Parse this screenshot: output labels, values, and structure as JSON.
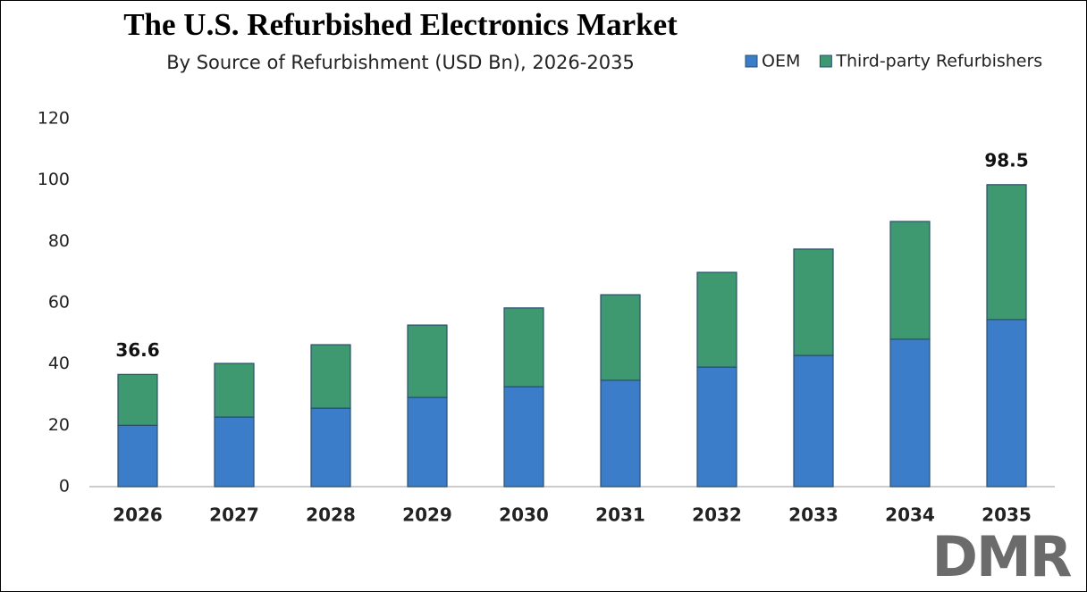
{
  "chart_data": {
    "type": "stacked_bar",
    "title": "The U.S. Refurbished Electronics Market",
    "subtitle": "By Source of Refurbishment (USD Bn), 2026-2035",
    "categories": [
      "2026",
      "2027",
      "2028",
      "2029",
      "2030",
      "2031",
      "2032",
      "2033",
      "2034",
      "2035"
    ],
    "series": [
      {
        "name": "OEM",
        "color": "#3b7dc8",
        "values": [
          20.0,
          22.7,
          25.6,
          29.1,
          32.6,
          34.7,
          39.0,
          42.8,
          48.1,
          54.5
        ]
      },
      {
        "name": "Third-party Refurbishers",
        "color": "#3e9870",
        "values": [
          16.6,
          17.5,
          20.7,
          23.6,
          25.7,
          27.9,
          30.9,
          34.7,
          38.4,
          44.0
        ]
      }
    ],
    "annotations": [
      {
        "x": "2026",
        "value": 36.6
      },
      {
        "x": "2035",
        "value": 98.5
      }
    ],
    "ylim": [
      0,
      120
    ],
    "yticks": [
      0,
      20,
      40,
      60,
      80,
      100,
      120
    ],
    "grid": false,
    "legend": "top-right",
    "watermark": "DMR"
  }
}
